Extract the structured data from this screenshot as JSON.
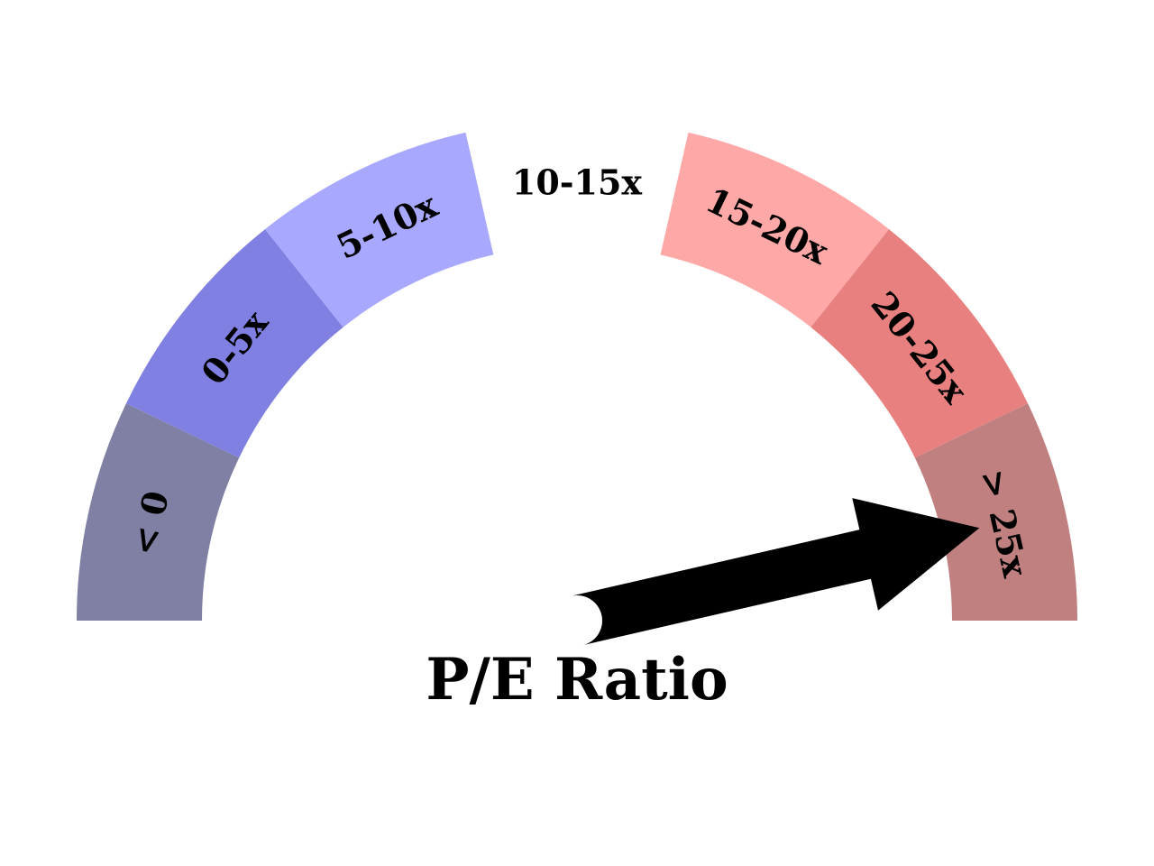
{
  "chart_data": {
    "type": "gauge",
    "title": "P/E Ratio",
    "segments": [
      {
        "label": "< 0",
        "color": "#8080a4"
      },
      {
        "label": "0-5x",
        "color": "#8080e2"
      },
      {
        "label": "5-10x",
        "color": "#a8a8ff"
      },
      {
        "label": "10-15x",
        "color": "#ffffff"
      },
      {
        "label": "15-20x",
        "color": "#ffa8a8"
      },
      {
        "label": "20-25x",
        "color": "#e88080"
      },
      {
        "label": "> 25x",
        "color": "#c08080"
      }
    ],
    "needle_segment": "> 25x",
    "needle_fraction": 0.928,
    "needle_color": "#000000"
  }
}
